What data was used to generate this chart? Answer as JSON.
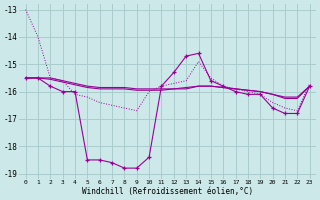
{
  "xlabel": "Windchill (Refroidissement éolien,°C)",
  "bg_color": "#cce8e8",
  "grid_color": "#aacccc",
  "line_color": "#990099",
  "x": [
    0,
    1,
    2,
    3,
    4,
    5,
    6,
    7,
    8,
    9,
    10,
    11,
    12,
    13,
    14,
    15,
    16,
    17,
    18,
    19,
    20,
    21,
    22,
    23
  ],
  "line_dotted": [
    -13.0,
    -14.0,
    -15.5,
    -15.6,
    -16.1,
    -16.2,
    -16.4,
    -16.5,
    -16.6,
    -16.7,
    -16.0,
    -15.8,
    -15.7,
    -15.6,
    -14.9,
    -15.5,
    -15.8,
    -15.9,
    -16.0,
    -16.1,
    -16.4,
    -16.6,
    -16.7,
    -15.7
  ],
  "line_marker": [
    -15.5,
    -15.5,
    -15.8,
    -16.0,
    -16.0,
    -18.5,
    -18.5,
    -18.6,
    -18.8,
    -18.8,
    -18.4,
    -15.8,
    -15.3,
    -14.7,
    -14.6,
    -15.6,
    -15.8,
    -16.0,
    -16.1,
    -16.1,
    -16.6,
    -16.8,
    -16.8,
    -15.8
  ],
  "line_flat1": [
    -15.5,
    -15.5,
    -15.5,
    -15.6,
    -15.7,
    -15.8,
    -15.85,
    -15.85,
    -15.85,
    -15.9,
    -15.9,
    -15.9,
    -15.9,
    -15.85,
    -15.8,
    -15.8,
    -15.85,
    -15.9,
    -15.95,
    -16.0,
    -16.1,
    -16.2,
    -16.2,
    -15.8
  ],
  "line_flat2": [
    -15.5,
    -15.5,
    -15.55,
    -15.65,
    -15.75,
    -15.85,
    -15.9,
    -15.9,
    -15.9,
    -15.95,
    -15.95,
    -15.95,
    -15.9,
    -15.9,
    -15.8,
    -15.8,
    -15.85,
    -15.9,
    -15.95,
    -16.0,
    -16.1,
    -16.25,
    -16.25,
    -15.8
  ],
  "ylim": [
    -19.2,
    -12.8
  ],
  "xlim": [
    -0.5,
    23.5
  ],
  "yticks": [
    -19,
    -18,
    -17,
    -16,
    -15,
    -14,
    -13
  ],
  "xticks": [
    0,
    1,
    2,
    3,
    4,
    5,
    6,
    7,
    8,
    9,
    10,
    11,
    12,
    13,
    14,
    15,
    16,
    17,
    18,
    19,
    20,
    21,
    22,
    23
  ]
}
